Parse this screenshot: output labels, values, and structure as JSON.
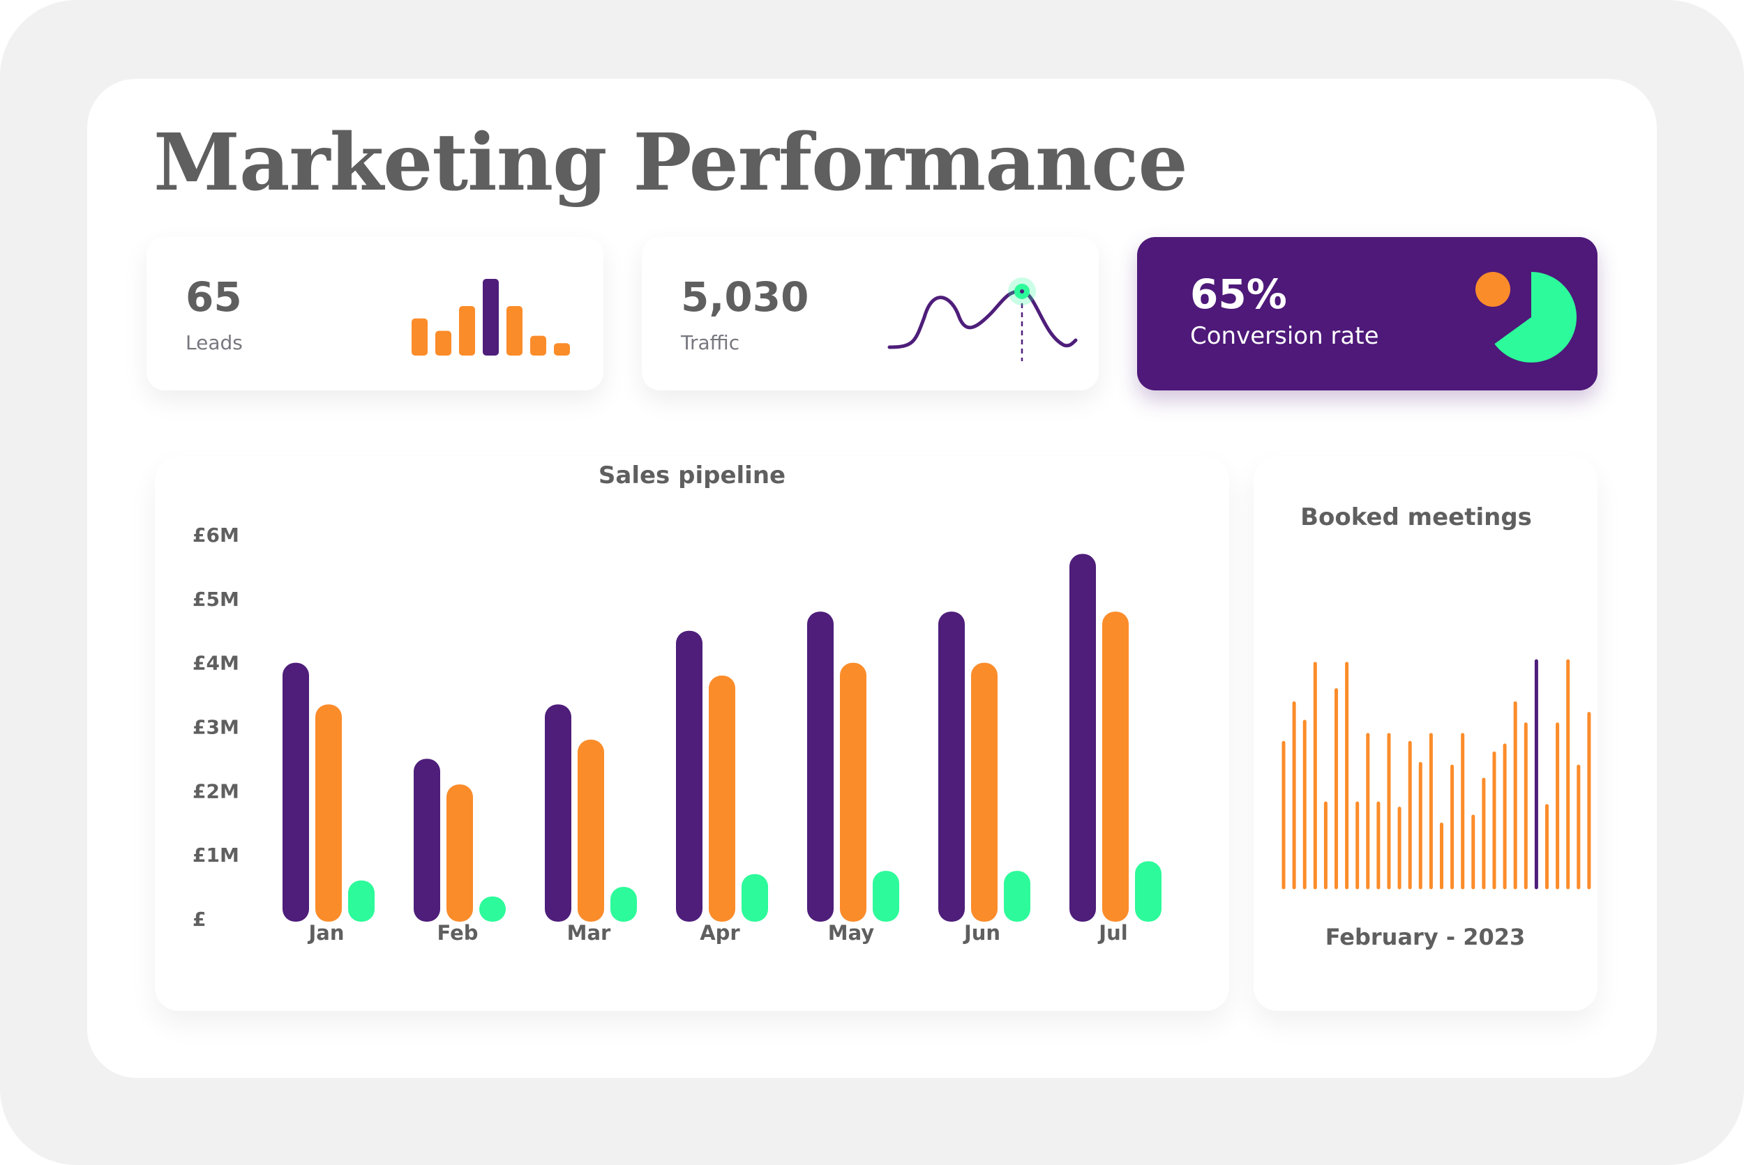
{
  "page": {
    "title": "Marketing Performance"
  },
  "colors": {
    "purple": "#4e1e7a",
    "orange": "#fb8c2a",
    "green": "#2dfa9a",
    "text": "#5f5f5f",
    "muted": "#77777f"
  },
  "kpis": {
    "leads": {
      "value": "65",
      "label": "Leads",
      "spark_values": [
        3,
        2,
        4,
        6.2,
        4,
        1.6,
        1
      ]
    },
    "traffic": {
      "value": "5,030",
      "label": "Traffic"
    },
    "conversion": {
      "value": "65%",
      "label": "Conversion rate",
      "percent": 65
    }
  },
  "chart_data": [
    {
      "type": "bar",
      "title": "Sales pipeline",
      "categories": [
        "Jan",
        "Feb",
        "Mar",
        "Apr",
        "May",
        "Jun",
        "Jul"
      ],
      "y_ticks": [
        "£",
        "£1M",
        "£2M",
        "£3M",
        "£4M",
        "£5M",
        "£6M"
      ],
      "ylim": [
        0,
        6
      ],
      "series": [
        {
          "name": "Purple",
          "color": "#4e1e7a",
          "values": [
            4.0,
            2.5,
            3.35,
            4.5,
            4.8,
            4.8,
            5.7
          ]
        },
        {
          "name": "Orange",
          "color": "#fb8c2a",
          "values": [
            3.35,
            2.1,
            2.8,
            3.8,
            4.0,
            4.0,
            4.8
          ]
        },
        {
          "name": "Green",
          "color": "#2dfa9a",
          "values": [
            0.6,
            0.35,
            0.5,
            0.7,
            0.75,
            0.75,
            0.9
          ]
        }
      ]
    },
    {
      "type": "bar",
      "title": "Booked meetings",
      "xlabel": "February - 2023",
      "values": [
        5.5,
        7.0,
        6.3,
        8.5,
        3.2,
        7.5,
        8.5,
        3.2,
        5.8,
        3.2,
        5.8,
        3.0,
        5.5,
        4.7,
        5.8,
        2.4,
        4.6,
        5.8,
        2.7,
        4.1,
        5.1,
        5.4,
        7.0,
        6.2,
        8.6,
        3.1,
        6.2,
        8.6,
        4.6,
        6.6
      ],
      "highlight_index": 24,
      "ylim": [
        0,
        9
      ]
    }
  ]
}
